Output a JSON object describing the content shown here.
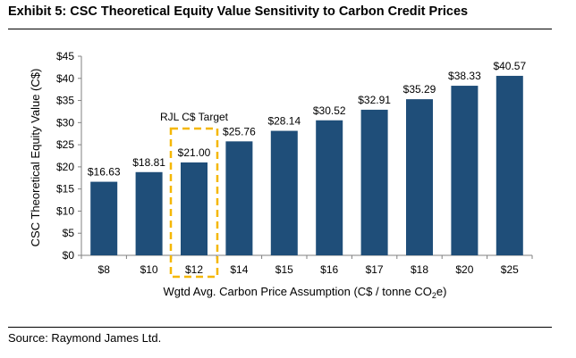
{
  "exhibit": {
    "title": "Exhibit 5: CSC Theoretical Equity Value Sensitivity to Carbon Credit Prices",
    "source": "Source: Raymond James Ltd."
  },
  "colors": {
    "bar": "#1f4e79",
    "highlight": "#f5b700",
    "axis": "#808080"
  },
  "chart_data": {
    "type": "bar",
    "categories": [
      "$8",
      "$10",
      "$12",
      "$14",
      "$15",
      "$16",
      "$17",
      "$18",
      "$20",
      "$25"
    ],
    "values": [
      16.63,
      18.81,
      21.0,
      25.76,
      28.14,
      30.52,
      32.91,
      35.29,
      38.33,
      40.57
    ],
    "data_labels": [
      "$16.63",
      "$18.81",
      "$21.00",
      "$25.76",
      "$28.14",
      "$30.52",
      "$32.91",
      "$35.29",
      "$38.33",
      "$40.57"
    ],
    "ylim": [
      0,
      45
    ],
    "yticks": [
      0,
      5,
      10,
      15,
      20,
      25,
      30,
      35,
      40,
      45
    ],
    "ytick_labels": [
      "$0",
      "$5",
      "$10",
      "$15",
      "$20",
      "$25",
      "$30",
      "$35",
      "$40",
      "$45"
    ],
    "ylabel": "CSC Theoretical Equity Value (C$)",
    "xlabel_main": "Wgtd Avg. Carbon Price Assumption (C$ / tonne CO",
    "xlabel_sub": "2",
    "xlabel_end": "e)",
    "highlight_index": 2,
    "annotation": "RJL C$ Target",
    "grid": false,
    "legend": "none"
  }
}
